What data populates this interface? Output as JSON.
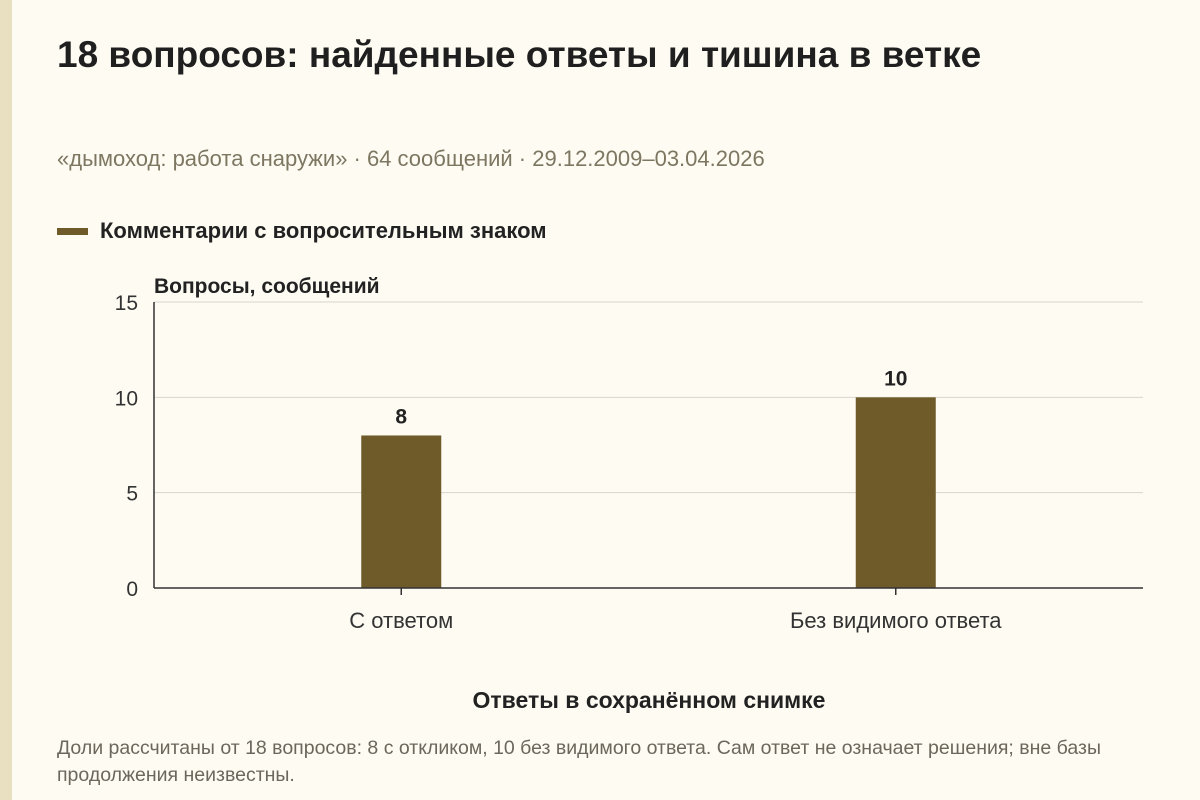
{
  "title": "18 вопросов: найденные ответы и тишина в ветке",
  "subtitle": "«дымоход: работа снаружи» · 64 сообщений · 29.12.2009–03.04.2026",
  "note": "Доли рассчитаны от 18 вопросов: 8 с откликом, 10 без видимого ответа. Сам ответ не означает решения; вне базы продолжения неизвестны.",
  "colors": {
    "bar": "#6f5b29",
    "grid": "#d9d6cc",
    "axis": "#333333",
    "background": "#fdfbf2"
  },
  "chart_data": {
    "type": "bar",
    "title": "",
    "xlabel": "Ответы в сохранённом снимке",
    "ylabel": "Вопросы, сообщений",
    "categories": [
      "С ответом",
      "Без видимого ответа"
    ],
    "series": [
      {
        "name": "Комментарии с вопросительным знаком",
        "values": [
          8,
          10
        ]
      }
    ],
    "ylim": [
      0,
      15
    ],
    "yticks": [
      "0",
      "5",
      "10",
      "15"
    ],
    "data_labels": [
      "8",
      "10"
    ],
    "grid": true,
    "legend": "top-left"
  }
}
